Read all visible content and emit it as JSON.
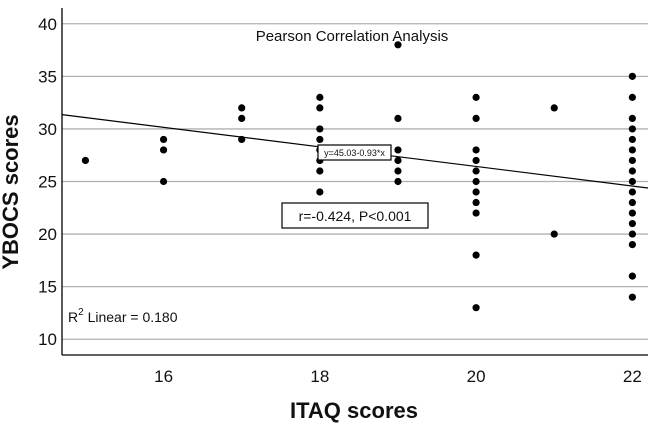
{
  "chart_data": {
    "type": "scatter",
    "title": "Pearson Correlation Analysis",
    "xlabel": "ITAQ scores",
    "ylabel": "YBOCS scores",
    "xlim": [
      14.7,
      22.2
    ],
    "ylim": [
      8.5,
      41.5
    ],
    "xticks": [
      16,
      18,
      20,
      22
    ],
    "yticks": [
      10,
      15,
      20,
      25,
      30,
      35,
      40
    ],
    "grid_y": true,
    "points": [
      {
        "x": 15,
        "y": 27
      },
      {
        "x": 16,
        "y": 29
      },
      {
        "x": 16,
        "y": 28
      },
      {
        "x": 16,
        "y": 25
      },
      {
        "x": 17,
        "y": 32
      },
      {
        "x": 17,
        "y": 31
      },
      {
        "x": 17,
        "y": 29
      },
      {
        "x": 18,
        "y": 33
      },
      {
        "x": 18,
        "y": 32
      },
      {
        "x": 18,
        "y": 30
      },
      {
        "x": 18,
        "y": 29
      },
      {
        "x": 18,
        "y": 28
      },
      {
        "x": 18,
        "y": 27
      },
      {
        "x": 18,
        "y": 26
      },
      {
        "x": 18,
        "y": 24
      },
      {
        "x": 19,
        "y": 38
      },
      {
        "x": 19,
        "y": 31
      },
      {
        "x": 19,
        "y": 28
      },
      {
        "x": 19,
        "y": 27
      },
      {
        "x": 19,
        "y": 26
      },
      {
        "x": 19,
        "y": 25
      },
      {
        "x": 20,
        "y": 33
      },
      {
        "x": 20,
        "y": 31
      },
      {
        "x": 20,
        "y": 28
      },
      {
        "x": 20,
        "y": 27
      },
      {
        "x": 20,
        "y": 26
      },
      {
        "x": 20,
        "y": 25
      },
      {
        "x": 20,
        "y": 24
      },
      {
        "x": 20,
        "y": 23
      },
      {
        "x": 20,
        "y": 22
      },
      {
        "x": 20,
        "y": 18
      },
      {
        "x": 20,
        "y": 13
      },
      {
        "x": 21,
        "y": 32
      },
      {
        "x": 21,
        "y": 20
      },
      {
        "x": 22,
        "y": 35
      },
      {
        "x": 22,
        "y": 33
      },
      {
        "x": 22,
        "y": 31
      },
      {
        "x": 22,
        "y": 30
      },
      {
        "x": 22,
        "y": 29
      },
      {
        "x": 22,
        "y": 28
      },
      {
        "x": 22,
        "y": 27
      },
      {
        "x": 22,
        "y": 26
      },
      {
        "x": 22,
        "y": 25
      },
      {
        "x": 22,
        "y": 24
      },
      {
        "x": 22,
        "y": 23
      },
      {
        "x": 22,
        "y": 22
      },
      {
        "x": 22,
        "y": 21
      },
      {
        "x": 22,
        "y": 20
      },
      {
        "x": 22,
        "y": 19
      },
      {
        "x": 22,
        "y": 16
      },
      {
        "x": 22,
        "y": 14
      }
    ],
    "fit_line": {
      "intercept": 45.03,
      "slope": -0.93
    },
    "fit_equation_label": "y=45.03-0.93*x",
    "stats_label": "r=-0.424, P<0.001",
    "r2_label_main": "R",
    "r2_label_sup": "2",
    "r2_label_rest": " Linear = 0.180",
    "colors": {
      "points": "#000000",
      "grid": "#b0b0b0",
      "line": "#000000"
    }
  }
}
